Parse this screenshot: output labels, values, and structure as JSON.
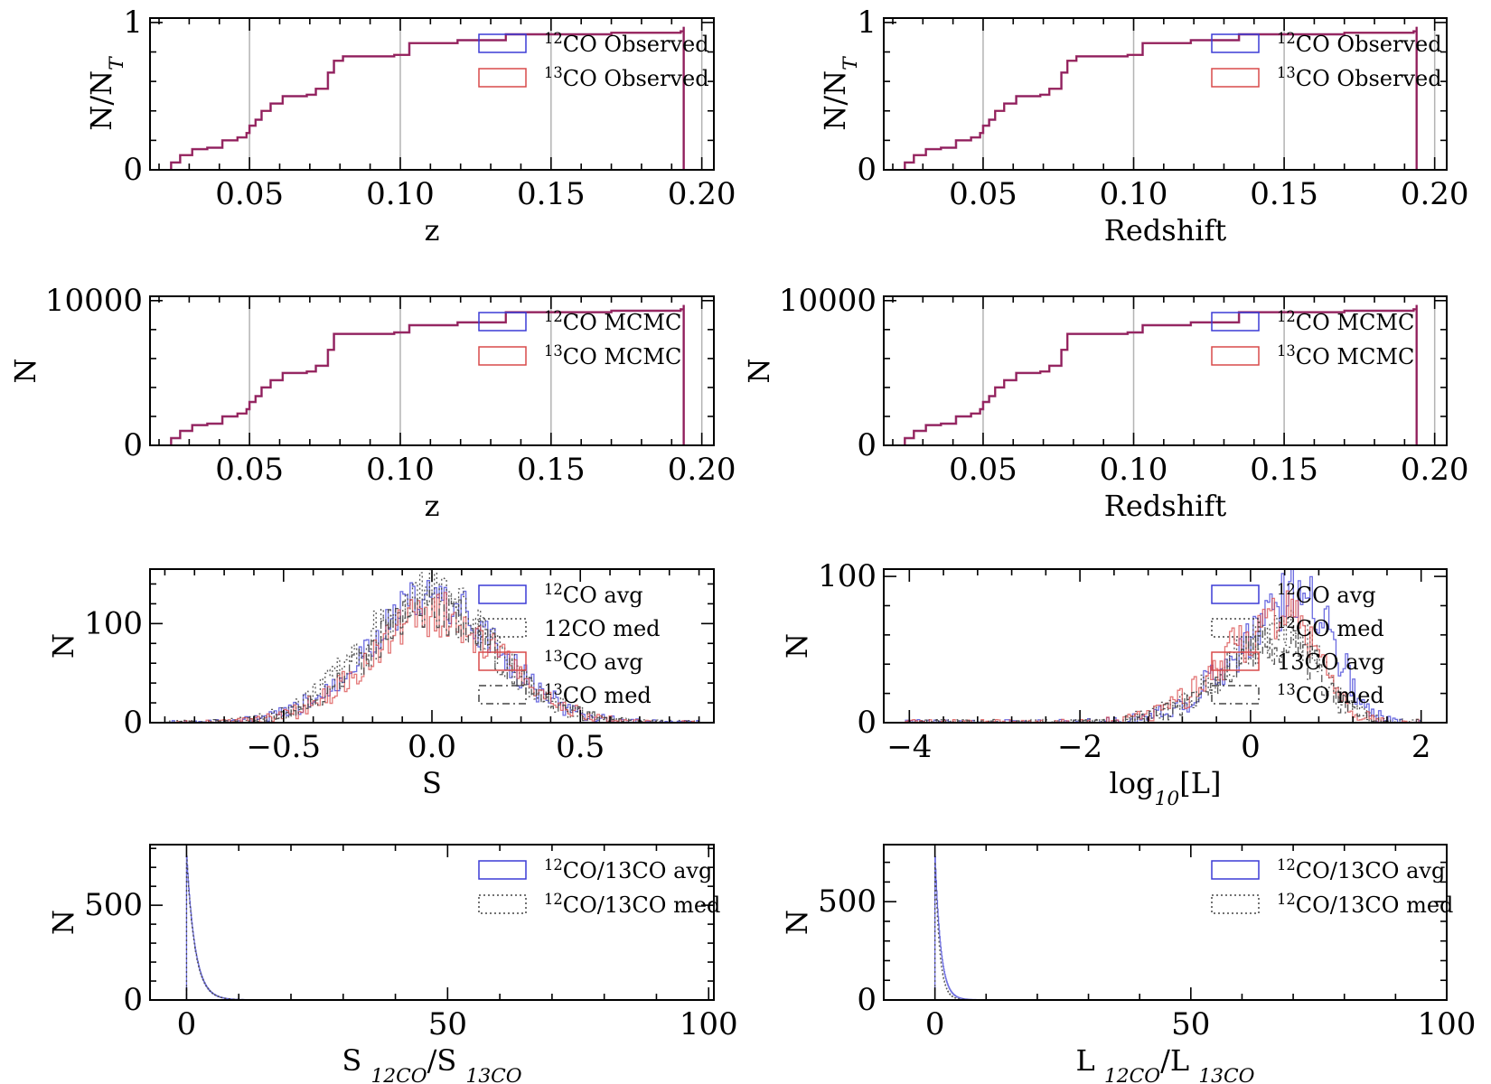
{
  "colors": {
    "co12": "#3b3bd6",
    "co13": "#d94a4a",
    "overlap": "#8e1e5e",
    "med": "#444444",
    "grid": "#b3b3b3"
  },
  "chart_data": [
    {
      "type": "step",
      "xlabel": "z",
      "ylabel": "N/N",
      "ylabel_sub": "T",
      "xlim": [
        0.017,
        0.204
      ],
      "ylim": [
        0,
        1.03
      ],
      "xticks": [
        0.05,
        0.1,
        0.15,
        0.2
      ],
      "xtick_labels": [
        "0.05",
        "0.10",
        "0.15",
        "0.20"
      ],
      "yticks": [
        0,
        1
      ],
      "ytick_labels": [
        "0",
        "1"
      ],
      "grid_x": true,
      "legend": "top-right",
      "series": [
        {
          "name_sup": "12",
          "name": "CO Observed",
          "color": "co12",
          "style": "solid"
        },
        {
          "name_sup": "13",
          "name": "CO Observed",
          "color": "co13",
          "style": "solid"
        }
      ],
      "cdf": [
        [
          0.024,
          0
        ],
        [
          0.024,
          0.05
        ],
        [
          0.027,
          0.1
        ],
        [
          0.031,
          0.14
        ],
        [
          0.036,
          0.15
        ],
        [
          0.041,
          0.2
        ],
        [
          0.046,
          0.22
        ],
        [
          0.049,
          0.25
        ],
        [
          0.05,
          0.3
        ],
        [
          0.052,
          0.34
        ],
        [
          0.054,
          0.4
        ],
        [
          0.057,
          0.45
        ],
        [
          0.061,
          0.5
        ],
        [
          0.069,
          0.51
        ],
        [
          0.072,
          0.55
        ],
        [
          0.076,
          0.66
        ],
        [
          0.078,
          0.74
        ],
        [
          0.081,
          0.77
        ],
        [
          0.098,
          0.78
        ],
        [
          0.103,
          0.86
        ],
        [
          0.119,
          0.88
        ],
        [
          0.13,
          0.88
        ],
        [
          0.135,
          0.92
        ],
        [
          0.17,
          0.93
        ],
        [
          0.193,
          0.94
        ],
        [
          0.194,
          0.97
        ],
        [
          0.194,
          0
        ]
      ]
    },
    {
      "type": "step",
      "xlabel": "Redshift",
      "ylabel": "N/N",
      "ylabel_sub": "T",
      "xlim": [
        0.017,
        0.204
      ],
      "ylim": [
        0,
        1.03
      ],
      "xticks": [
        0.05,
        0.1,
        0.15,
        0.2
      ],
      "xtick_labels": [
        "0.05",
        "0.10",
        "0.15",
        "0.20"
      ],
      "yticks": [
        0,
        1
      ],
      "ytick_labels": [
        "0",
        "1"
      ],
      "grid_x": true,
      "legend": "top-right",
      "series": [
        {
          "name_sup": "12",
          "name": "CO Observed",
          "color": "co12",
          "style": "solid"
        },
        {
          "name_sup": "13",
          "name": "CO Observed",
          "color": "co13",
          "style": "solid"
        }
      ],
      "cdf": [
        [
          0.024,
          0
        ],
        [
          0.024,
          0.05
        ],
        [
          0.027,
          0.1
        ],
        [
          0.031,
          0.14
        ],
        [
          0.036,
          0.15
        ],
        [
          0.041,
          0.2
        ],
        [
          0.046,
          0.22
        ],
        [
          0.049,
          0.25
        ],
        [
          0.05,
          0.3
        ],
        [
          0.052,
          0.34
        ],
        [
          0.054,
          0.4
        ],
        [
          0.057,
          0.45
        ],
        [
          0.061,
          0.5
        ],
        [
          0.069,
          0.51
        ],
        [
          0.072,
          0.55
        ],
        [
          0.076,
          0.66
        ],
        [
          0.078,
          0.74
        ],
        [
          0.081,
          0.77
        ],
        [
          0.098,
          0.78
        ],
        [
          0.103,
          0.86
        ],
        [
          0.119,
          0.88
        ],
        [
          0.13,
          0.88
        ],
        [
          0.135,
          0.92
        ],
        [
          0.17,
          0.93
        ],
        [
          0.193,
          0.94
        ],
        [
          0.194,
          0.97
        ],
        [
          0.194,
          0
        ]
      ]
    },
    {
      "type": "step",
      "xlabel": "z",
      "ylabel": "N",
      "xlim": [
        0.017,
        0.204
      ],
      "ylim": [
        0,
        10300
      ],
      "xticks": [
        0.05,
        0.1,
        0.15,
        0.2
      ],
      "xtick_labels": [
        "0.05",
        "0.10",
        "0.15",
        "0.20"
      ],
      "yticks": [
        0,
        10000
      ],
      "ytick_labels": [
        "0",
        "10000"
      ],
      "grid_x": true,
      "legend": "top-right",
      "series": [
        {
          "name_sup": "12",
          "name": "CO MCMC",
          "color": "co12",
          "style": "solid"
        },
        {
          "name_sup": "13",
          "name": "CO MCMC",
          "color": "co13",
          "style": "solid"
        }
      ],
      "cdf": [
        [
          0.024,
          0
        ],
        [
          0.024,
          500
        ],
        [
          0.027,
          1000
        ],
        [
          0.031,
          1400
        ],
        [
          0.036,
          1500
        ],
        [
          0.041,
          2000
        ],
        [
          0.046,
          2200
        ],
        [
          0.049,
          2500
        ],
        [
          0.05,
          3000
        ],
        [
          0.052,
          3400
        ],
        [
          0.054,
          4000
        ],
        [
          0.057,
          4500
        ],
        [
          0.061,
          5000
        ],
        [
          0.069,
          5100
        ],
        [
          0.072,
          5500
        ],
        [
          0.076,
          6600
        ],
        [
          0.078,
          7700
        ],
        [
          0.098,
          7800
        ],
        [
          0.103,
          8300
        ],
        [
          0.119,
          8500
        ],
        [
          0.13,
          8500
        ],
        [
          0.135,
          9200
        ],
        [
          0.17,
          9300
        ],
        [
          0.193,
          9400
        ],
        [
          0.194,
          9700
        ],
        [
          0.194,
          0
        ]
      ]
    },
    {
      "type": "step",
      "xlabel": "Redshift",
      "ylabel": "N",
      "xlim": [
        0.017,
        0.204
      ],
      "ylim": [
        0,
        10300
      ],
      "xticks": [
        0.05,
        0.1,
        0.15,
        0.2
      ],
      "xtick_labels": [
        "0.05",
        "0.10",
        "0.15",
        "0.20"
      ],
      "yticks": [
        0,
        10000
      ],
      "ytick_labels": [
        "0",
        "10000"
      ],
      "grid_x": true,
      "legend": "top-right",
      "series": [
        {
          "name_sup": "12",
          "name": "CO MCMC",
          "color": "co12",
          "style": "solid"
        },
        {
          "name_sup": "13",
          "name": "CO MCMC",
          "color": "co13",
          "style": "solid"
        }
      ],
      "cdf": [
        [
          0.024,
          0
        ],
        [
          0.024,
          500
        ],
        [
          0.027,
          1000
        ],
        [
          0.031,
          1400
        ],
        [
          0.036,
          1500
        ],
        [
          0.041,
          2000
        ],
        [
          0.046,
          2200
        ],
        [
          0.049,
          2500
        ],
        [
          0.05,
          3000
        ],
        [
          0.052,
          3400
        ],
        [
          0.054,
          4000
        ],
        [
          0.057,
          4500
        ],
        [
          0.061,
          5000
        ],
        [
          0.069,
          5100
        ],
        [
          0.072,
          5500
        ],
        [
          0.076,
          6600
        ],
        [
          0.078,
          7700
        ],
        [
          0.098,
          7800
        ],
        [
          0.103,
          8300
        ],
        [
          0.119,
          8500
        ],
        [
          0.13,
          8500
        ],
        [
          0.135,
          9200
        ],
        [
          0.17,
          9300
        ],
        [
          0.193,
          9400
        ],
        [
          0.194,
          9700
        ],
        [
          0.194,
          0
        ]
      ]
    },
    {
      "type": "histogram",
      "xlabel": "S",
      "ylabel": "N",
      "xlim": [
        -0.95,
        0.95
      ],
      "ylim": [
        0,
        155
      ],
      "xticks": [
        -0.5,
        0.0,
        0.5
      ],
      "xtick_labels": [
        "−0.5",
        "0.0",
        "0.5"
      ],
      "yticks": [
        0,
        100
      ],
      "ytick_labels": [
        "0",
        "100"
      ],
      "legend": "top-right",
      "series": [
        {
          "name_sup": "12",
          "name": "CO avg",
          "color": "co12",
          "style": "solid",
          "dist": {
            "kind": "gauss",
            "mu": 0.0,
            "sigma": 0.22,
            "peak": 125,
            "range": [
              -0.9,
              0.9
            ]
          }
        },
        {
          "name_sup": "",
          "name": "12CO med",
          "color": "med",
          "style": "dotted",
          "dist": {
            "kind": "gauss",
            "mu": -0.01,
            "sigma": 0.22,
            "peak": 130,
            "range": [
              -0.9,
              0.9
            ]
          }
        },
        {
          "name_sup": "13",
          "name": "CO avg",
          "color": "co13",
          "style": "solid",
          "dist": {
            "kind": "gauss",
            "mu": 0.01,
            "sigma": 0.22,
            "peak": 110,
            "range": [
              -0.9,
              0.9
            ]
          }
        },
        {
          "name_sup": "13",
          "name": "CO med",
          "color": "med",
          "style": "dashdot",
          "dist": {
            "kind": "gauss",
            "mu": 0.0,
            "sigma": 0.22,
            "peak": 115,
            "range": [
              -0.9,
              0.9
            ]
          }
        }
      ]
    },
    {
      "type": "histogram",
      "xlabel": "log",
      "xlabel_sub": "10",
      "xlabel_tail": "[L]",
      "ylabel": "N",
      "xlim": [
        -4.3,
        2.3
      ],
      "ylim": [
        0,
        105
      ],
      "xticks": [
        -4,
        -2,
        0,
        2
      ],
      "xtick_labels": [
        "−4",
        "−2",
        "0",
        "2"
      ],
      "yticks": [
        0,
        100
      ],
      "ytick_labels": [
        "0",
        "100"
      ],
      "legend": "top-right",
      "series": [
        {
          "name_sup": "12",
          "name": "CO avg",
          "color": "co12",
          "style": "solid",
          "dist": {
            "kind": "skew",
            "mode": 0.65,
            "left": 0.75,
            "right": 0.35,
            "peak": 88,
            "range": [
              -4.1,
              2.0
            ]
          }
        },
        {
          "name_sup": "12",
          "name": "CO med",
          "color": "med",
          "style": "dotted",
          "dist": {
            "kind": "skew",
            "mode": 0.45,
            "left": 0.75,
            "right": 0.4,
            "peak": 62,
            "range": [
              -4.1,
              2.0
            ]
          }
        },
        {
          "name_sup": "",
          "name": "13CO avg",
          "color": "co13",
          "style": "solid",
          "dist": {
            "kind": "skew",
            "mode": 0.4,
            "left": 0.7,
            "right": 0.4,
            "peak": 72,
            "range": [
              -4.1,
              2.0
            ]
          }
        },
        {
          "name_sup": "13",
          "name": "CO med",
          "color": "med",
          "style": "dashdot",
          "dist": {
            "kind": "skew",
            "mode": 0.4,
            "left": 0.7,
            "right": 0.4,
            "peak": 55,
            "range": [
              -4.1,
              2.0
            ]
          }
        }
      ]
    },
    {
      "type": "histogram",
      "xlabel": "S",
      "xlabel_parts": [
        [
          "S ",
          ""
        ],
        [
          "12CO",
          "sub"
        ],
        [
          "/S ",
          ""
        ],
        [
          "13CO",
          "sub"
        ]
      ],
      "ylabel": "N",
      "xlim": [
        -7,
        101
      ],
      "ylim": [
        0,
        820
      ],
      "xticks": [
        0,
        50,
        100
      ],
      "xtick_labels": [
        "0",
        "50",
        "100"
      ],
      "yticks": [
        0,
        500
      ],
      "ytick_labels": [
        "0",
        "500"
      ],
      "legend": "top-right",
      "series": [
        {
          "name_sup": "12",
          "name": "CO/13CO avg",
          "color": "co12",
          "style": "solid",
          "dist": {
            "kind": "exp",
            "start": 0.0,
            "peak": 780,
            "scale": 1.6,
            "range": [
              0,
              40
            ]
          }
        },
        {
          "name_sup": "12",
          "name": "CO/13CO med",
          "color": "med",
          "style": "dotted",
          "dist": {
            "kind": "exp",
            "start": 0.0,
            "peak": 760,
            "scale": 1.6,
            "range": [
              0,
              40
            ]
          }
        }
      ]
    },
    {
      "type": "histogram",
      "xlabel": "L",
      "xlabel_parts": [
        [
          "L ",
          ""
        ],
        [
          "12CO",
          "sub"
        ],
        [
          "/L ",
          ""
        ],
        [
          "13CO",
          "sub"
        ]
      ],
      "ylabel": "N",
      "xlim": [
        -10,
        100
      ],
      "ylim": [
        0,
        790
      ],
      "xticks": [
        0,
        50,
        100
      ],
      "xtick_labels": [
        "0",
        "50",
        "100"
      ],
      "yticks": [
        0,
        500
      ],
      "ytick_labels": [
        "0",
        "500"
      ],
      "legend": "top-right",
      "series": [
        {
          "name_sup": "12",
          "name": "CO/13CO avg",
          "color": "co12",
          "style": "solid",
          "dist": {
            "kind": "exp",
            "start": 0.0,
            "peak": 760,
            "scale": 1.1,
            "range": [
              0,
              40
            ]
          }
        },
        {
          "name_sup": "12",
          "name": "CO/13CO med",
          "color": "med",
          "style": "dotted",
          "dist": {
            "kind": "exp",
            "start": 0.0,
            "peak": 720,
            "scale": 0.9,
            "range": [
              0,
              20
            ]
          }
        }
      ]
    }
  ]
}
